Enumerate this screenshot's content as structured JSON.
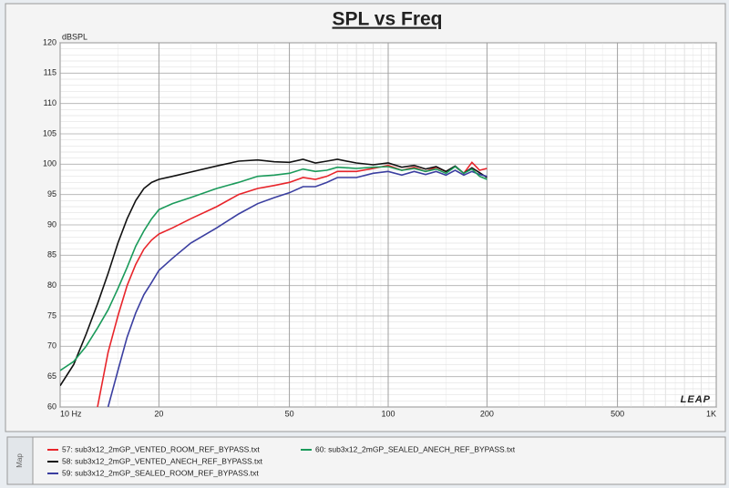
{
  "chart_data": {
    "type": "line",
    "title": "SPL vs Freq",
    "ylabel": "dBSPL",
    "logo": "LEAP",
    "panel_label": "Map",
    "x": [
      10,
      11,
      12,
      13,
      14,
      15,
      16,
      17,
      18,
      19,
      20,
      22,
      25,
      30,
      35,
      40,
      45,
      50,
      55,
      60,
      65,
      70,
      80,
      90,
      100,
      110,
      120,
      130,
      140,
      150,
      160,
      170,
      180,
      190,
      200
    ],
    "series": [
      {
        "name": "57: sub3x12_2mGP_VENTED_ROOM_REF_BYPASS.txt",
        "color": "#e8242a",
        "values": [
          null,
          null,
          null,
          60,
          69,
          75,
          80,
          83.5,
          86,
          87.5,
          88.5,
          89.5,
          91,
          93,
          95,
          96,
          96.5,
          97,
          97.8,
          97.5,
          98,
          98.8,
          98.8,
          99.3,
          99.8,
          99,
          99.5,
          98.8,
          99.5,
          98.8,
          99.6,
          98.5,
          100.3,
          99,
          99.3
        ]
      },
      {
        "name": "58: sub3x12_2mGP_VENTED_ANECH_REF_BYPASS.txt",
        "color": "#111111",
        "values": [
          63.5,
          67,
          72,
          77,
          82,
          87,
          91,
          94,
          96,
          97,
          97.5,
          98,
          98.7,
          99.7,
          100.5,
          100.7,
          100.4,
          100.3,
          100.8,
          100.2,
          100.5,
          100.8,
          100.2,
          99.9,
          100.2,
          99.5,
          99.8,
          99.2,
          99.6,
          98.8,
          99.7,
          98.5,
          99.4,
          98.6,
          97.8
        ]
      },
      {
        "name": "59: sub3x12_2mGP_SEALED_ROOM_REF_BYPASS.txt",
        "color": "#3a3ea0",
        "values": [
          null,
          null,
          null,
          null,
          60,
          66,
          71.5,
          75.5,
          78.5,
          80.5,
          82.5,
          84.5,
          87,
          89.5,
          91.8,
          93.5,
          94.5,
          95.3,
          96.3,
          96.3,
          97,
          97.8,
          97.8,
          98.5,
          98.8,
          98.2,
          98.8,
          98.3,
          98.8,
          98.2,
          99,
          98.2,
          98.8,
          98.3,
          98
        ]
      },
      {
        "name": "60: sub3x12_2mGP_SEALED_ANECH_REF_BYPASS.txt",
        "color": "#1a9a5a",
        "values": [
          66,
          67.5,
          70,
          73,
          76,
          79.5,
          83,
          86.5,
          89,
          91,
          92.5,
          93.5,
          94.5,
          96,
          97,
          98,
          98.2,
          98.5,
          99.2,
          98.8,
          99,
          99.5,
          99.3,
          99.5,
          99.6,
          99,
          99.3,
          98.8,
          99.2,
          98.5,
          99.6,
          98.5,
          99.2,
          98,
          97.5
        ]
      }
    ],
    "xlim": [
      10,
      1000
    ],
    "xscale": "log",
    "xticks": [
      {
        "value": 10,
        "label": "10 Hz"
      },
      20,
      50,
      100,
      200,
      500,
      {
        "value": 1000,
        "label": "1K"
      }
    ],
    "ylim": [
      60,
      120
    ],
    "yticks": [
      60,
      65,
      70,
      75,
      80,
      85,
      90,
      95,
      100,
      105,
      110,
      115,
      120
    ],
    "grid": true,
    "minor_grid": true
  }
}
